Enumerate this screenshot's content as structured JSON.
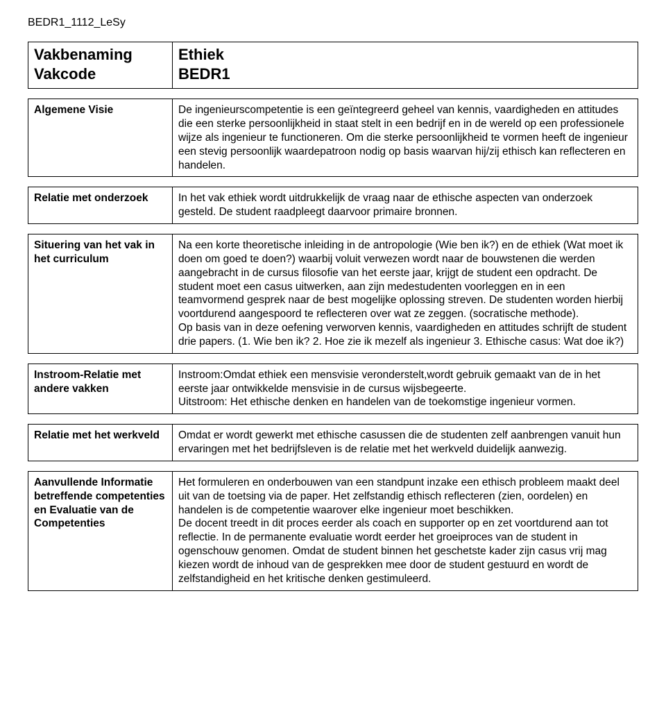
{
  "doc_id": "BEDR1_1112_LeSy",
  "header": {
    "labels": [
      "Vakbenaming",
      "Vakcode"
    ],
    "values": [
      "Ethiek",
      "BEDR1"
    ]
  },
  "sections": [
    {
      "label": "Algemene Visie",
      "text": "De ingenieurscompetentie is een geïntegreerd geheel van kennis, vaardigheden en attitudes die een sterke persoonlijkheid in staat stelt in een bedrijf en in de wereld op een professionele wijze als ingenieur te functioneren. Om die sterke persoonlijkheid te vormen heeft de ingenieur een stevig persoonlijk waardepatroon nodig op basis waarvan hij/zij ethisch kan reflecteren en handelen."
    },
    {
      "label": "Relatie met onderzoek",
      "text": "In het vak ethiek wordt uitdrukkelijk de vraag naar de ethische aspecten van  onderzoek gesteld. De student raadpleegt daarvoor primaire bronnen."
    },
    {
      "label": "Situering van het vak in het curriculum",
      "text": "Na een korte theoretische inleiding in de antropologie (Wie ben ik?) en de ethiek (Wat moet ik doen om goed te doen?) waarbij voluit verwezen wordt naar de bouwstenen die werden aangebracht in de cursus filosofie van het eerste jaar, krijgt de student een opdracht. De student moet een casus uitwerken, aan zijn medestudenten voorleggen en in een teamvormend gesprek naar de best mogelijke oplossing streven. De studenten worden hierbij voortdurend aangespoord te reflecteren over wat ze zeggen. (socratische methode).\nOp basis van in deze oefening verworven kennis, vaardigheden en attitudes schrijft de student drie papers. (1. Wie ben ik? 2. Hoe zie ik mezelf als ingenieur 3. Ethische casus: Wat doe ik?)"
    },
    {
      "label": "Instroom-Relatie met andere vakken",
      "text": "Instroom:Omdat ethiek een mensvisie veronderstelt,wordt gebruik gemaakt van de in het eerste jaar ontwikkelde mensvisie in de cursus wijsbegeerte.\nUitstroom: Het ethische denken en handelen van de toekomstige ingenieur vormen."
    },
    {
      "label": "Relatie met het werkveld",
      "text": "Omdat er wordt gewerkt met ethische casussen die de studenten zelf aanbrengen vanuit hun ervaringen  met het bedrijfsleven is de relatie met het werkveld duidelijk aanwezig."
    },
    {
      "label": "Aanvullende Informatie betreffende competenties en Evaluatie van de Competenties",
      "text": "Het formuleren en onderbouwen van een standpunt inzake een ethisch probleem maakt deel uit van de toetsing via de paper. Het zelfstandig ethisch reflecteren (zien, oordelen) en handelen is de competentie waarover elke ingenieur moet beschikken.\nDe docent treedt in dit proces eerder als coach en supporter op en zet voortdurend aan tot reflectie. In de permanente evaluatie wordt eerder het groeiproces van de student in ogenschouw genomen. Omdat de student binnen het geschetste kader zijn casus vrij mag kiezen wordt de inhoud van de gesprekken mee door de student gestuurd en wordt de zelfstandigheid en het kritische denken gestimuleerd."
    }
  ]
}
